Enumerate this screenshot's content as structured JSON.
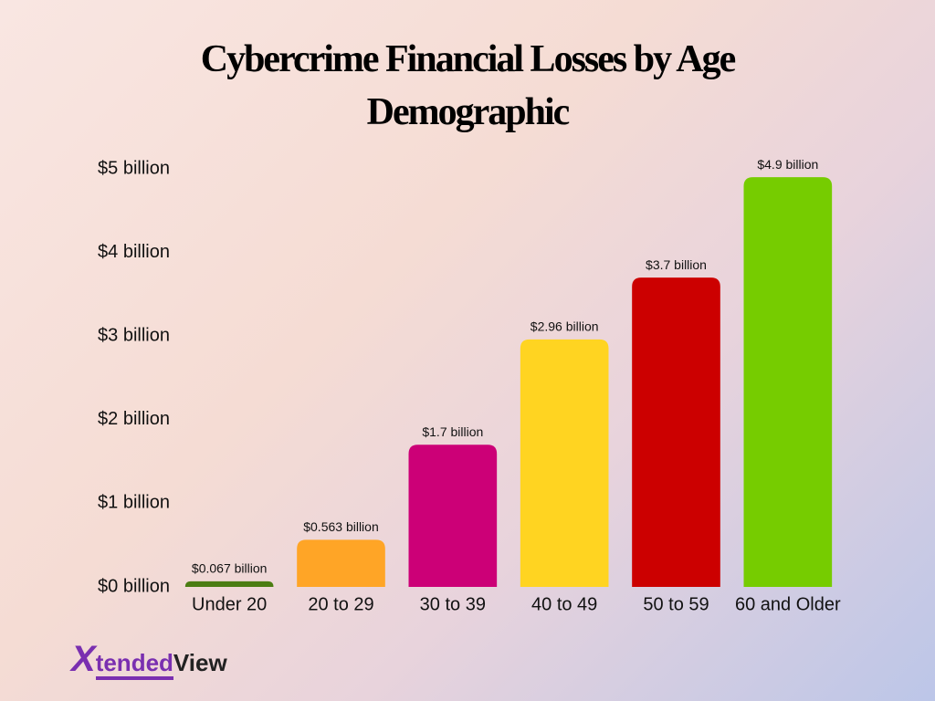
{
  "chart_data": {
    "type": "bar",
    "title": "Cybercrime Financial Losses by Age Demographic",
    "categories": [
      "Under 20",
      "20 to 29",
      "30 to 39",
      "40 to 49",
      "50 to 59",
      "60 and Older"
    ],
    "values": [
      0.067,
      0.563,
      1.7,
      2.96,
      3.7,
      4.9
    ],
    "value_labels": [
      "$0.067 billion",
      "$0.563 billion",
      "$1.7 billion",
      "$2.96 billion",
      "$3.7 billion",
      "$4.9 billion"
    ],
    "colors": [
      "#4b7d12",
      "#ffa526",
      "#cc0077",
      "#ffd421",
      "#cc0000",
      "#76cc00"
    ],
    "ylim": [
      0,
      5
    ],
    "yticks": [
      {
        "value": 0,
        "label": "$0 billion"
      },
      {
        "value": 1,
        "label": "$1 billion"
      },
      {
        "value": 2,
        "label": "$2 billion"
      },
      {
        "value": 3,
        "label": "$3 billion"
      },
      {
        "value": 4,
        "label": "$4 billion"
      },
      {
        "value": 5,
        "label": "$5 billion"
      }
    ],
    "grid": false
  },
  "logo": {
    "mark": "X",
    "first": "tended",
    "second": "View"
  }
}
